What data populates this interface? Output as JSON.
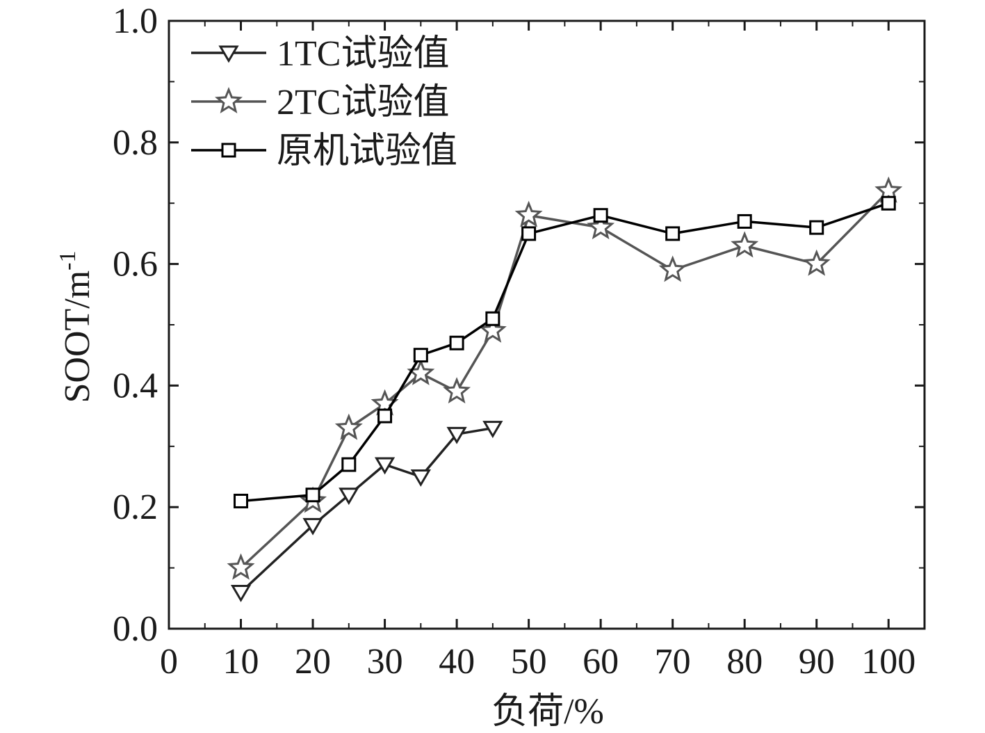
{
  "chart_data": {
    "type": "line",
    "xlabel": "负荷/%",
    "ylabel_base": "SOOT/m",
    "ylabel_sup": "-1",
    "xlim": [
      0,
      105
    ],
    "ylim": [
      0,
      1.0
    ],
    "xticks": [
      0,
      10,
      20,
      30,
      40,
      50,
      60,
      70,
      80,
      90,
      100
    ],
    "yticks": [
      0.0,
      0.2,
      0.4,
      0.6,
      0.8,
      1.0
    ],
    "xtick_labels": [
      "0",
      "10",
      "20",
      "30",
      "40",
      "50",
      "60",
      "70",
      "80",
      "90",
      "100"
    ],
    "ytick_labels": [
      "0.0",
      "0.2",
      "0.4",
      "0.6",
      "0.8",
      "1.0"
    ],
    "grid": false,
    "legend_position": "top-left",
    "series": [
      {
        "name": "1TC试验值",
        "marker": "triangle-down",
        "color": "#222222",
        "x": [
          10,
          20,
          25,
          30,
          35,
          40,
          45
        ],
        "y": [
          0.06,
          0.17,
          0.22,
          0.27,
          0.25,
          0.32,
          0.33
        ]
      },
      {
        "name": "2TC试验值",
        "marker": "star",
        "color": "#555555",
        "x": [
          10,
          20,
          25,
          30,
          35,
          40,
          45,
          50,
          60,
          70,
          80,
          90,
          100
        ],
        "y": [
          0.1,
          0.21,
          0.33,
          0.37,
          0.42,
          0.39,
          0.49,
          0.68,
          0.66,
          0.59,
          0.63,
          0.6,
          0.72
        ]
      },
      {
        "name": "原机试验值",
        "marker": "square",
        "color": "#000000",
        "x": [
          10,
          20,
          25,
          30,
          35,
          40,
          45,
          50,
          60,
          70,
          80,
          90,
          100
        ],
        "y": [
          0.21,
          0.22,
          0.27,
          0.35,
          0.45,
          0.47,
          0.51,
          0.65,
          0.68,
          0.65,
          0.67,
          0.66,
          0.7
        ]
      }
    ]
  }
}
